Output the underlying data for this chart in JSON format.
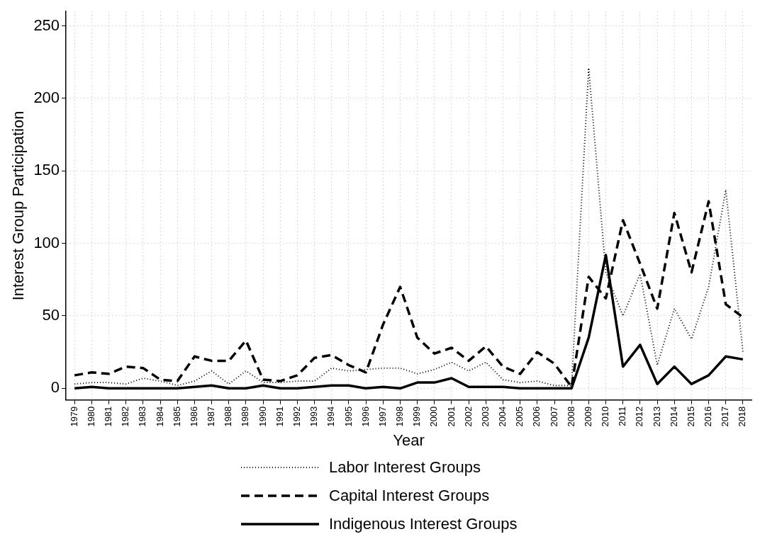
{
  "chart_data": {
    "type": "line",
    "xlabel": "Year",
    "ylabel": "Interest Group Participation",
    "categories": [
      "1979",
      "1980",
      "1981",
      "1982",
      "1983",
      "1984",
      "1985",
      "1986",
      "1987",
      "1988",
      "1989",
      "1990",
      "1991",
      "1992",
      "1993",
      "1994",
      "1995",
      "1996",
      "1997",
      "1998",
      "1999",
      "2000",
      "2001",
      "2002",
      "2003",
      "2004",
      "2005",
      "2006",
      "2007",
      "2008",
      "2009",
      "2010",
      "2011",
      "2012",
      "2013",
      "2014",
      "2015",
      "2016",
      "2017",
      "2018"
    ],
    "series": [
      {
        "name": "Labor Interest Groups",
        "color": "#000000",
        "line_style": "dotted",
        "values": [
          3,
          4,
          4,
          3,
          7,
          5,
          2,
          5,
          12,
          3,
          12,
          4,
          4,
          5,
          5,
          14,
          12,
          13,
          14,
          14,
          10,
          13,
          18,
          12,
          18,
          6,
          4,
          5,
          2,
          2,
          221,
          80,
          50,
          79,
          16,
          55,
          34,
          70,
          137,
          25
        ]
      },
      {
        "name": "Capital Interest Groups",
        "color": "#000000",
        "line_style": "dashed",
        "values": [
          9,
          11,
          10,
          15,
          14,
          6,
          5,
          22,
          19,
          19,
          33,
          6,
          5,
          9,
          21,
          23,
          16,
          11,
          44,
          70,
          35,
          24,
          28,
          19,
          29,
          15,
          10,
          25,
          17,
          1,
          77,
          62,
          116,
          86,
          55,
          121,
          80,
          129,
          58,
          49
        ]
      },
      {
        "name": "Indigenous Interest Groups",
        "color": "#000000",
        "line_style": "solid",
        "values": [
          0,
          1,
          0,
          0,
          0,
          0,
          0,
          1,
          2,
          0,
          0,
          2,
          0,
          0,
          1,
          2,
          2,
          0,
          1,
          0,
          4,
          4,
          7,
          1,
          1,
          1,
          0,
          0,
          0,
          0,
          35,
          92,
          15,
          30,
          3,
          15,
          3,
          9,
          22,
          20
        ]
      }
    ],
    "ylim": [
      -8,
      260
    ],
    "yticks": [
      0,
      50,
      100,
      150,
      200,
      250
    ],
    "grid": true,
    "legend": "bottom",
    "marker": "none"
  }
}
